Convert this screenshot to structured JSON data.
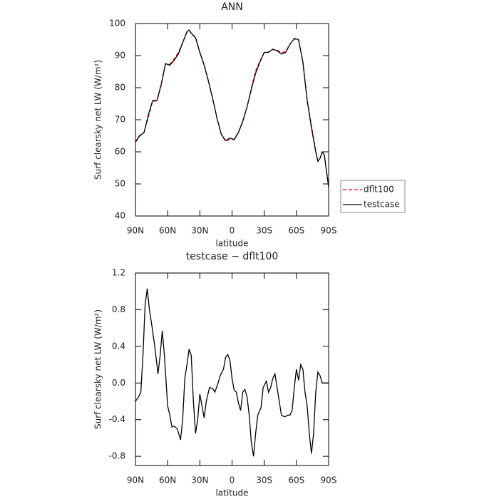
{
  "chart_data": [
    {
      "type": "line",
      "title": "ANN",
      "x_label": "latitude",
      "y_label": "Surf clearsky net LW (W/m²)",
      "x": [
        90,
        86,
        82,
        78,
        74,
        70,
        66,
        62,
        58,
        54,
        50,
        46,
        42,
        40,
        38,
        34,
        30,
        26,
        22,
        18,
        14,
        10,
        6,
        2,
        -2,
        -6,
        -10,
        -14,
        -18,
        -22,
        -26,
        -30,
        -34,
        -38,
        -42,
        -46,
        -50,
        -54,
        -58,
        -62,
        -66,
        -70,
        -74,
        -78,
        -80,
        -82,
        -84,
        -86,
        -88,
        -90
      ],
      "series": [
        {
          "name": "dflt100",
          "color": "#e00000",
          "dash": true,
          "values": [
            63.2,
            65.2,
            66.1,
            70.8,
            75.8,
            75.8,
            80.7,
            87.4,
            87.3,
            88.9,
            91.0,
            94.1,
            97.3,
            97.9,
            96.8,
            95.8,
            91.1,
            87.2,
            82.2,
            76.6,
            70.4,
            65.4,
            63.3,
            64.0,
            63.9,
            66.2,
            69.6,
            74.0,
            79.9,
            85.2,
            88.3,
            91.0,
            91.1,
            91.9,
            91.7,
            90.9,
            91.3,
            93.6,
            95.2,
            94.8,
            88.1,
            76.3,
            68.2,
            60.3,
            57.2,
            58.0,
            59.9,
            59.0,
            54.0,
            49.0
          ]
        },
        {
          "name": "testcase",
          "color": "#000000",
          "dash": false,
          "values": [
            63,
            65,
            66,
            71.5,
            76,
            76,
            81,
            87.5,
            87,
            88.5,
            90.5,
            94,
            97.5,
            98,
            97,
            95.5,
            91,
            87,
            82,
            76.5,
            70.5,
            65.5,
            63.5,
            64.3,
            63.8,
            66,
            69.5,
            74,
            79.5,
            84.5,
            88,
            91,
            91,
            92,
            91.5,
            90.5,
            91,
            93.5,
            95.3,
            95,
            88,
            76,
            67.5,
            60,
            57,
            58,
            60,
            59,
            54,
            49
          ]
        }
      ],
      "xlim": [
        90,
        -90
      ],
      "xticks": [
        {
          "value": 90,
          "label": "90N"
        },
        {
          "value": 60,
          "label": "60N"
        },
        {
          "value": 30,
          "label": "30N"
        },
        0,
        {
          "value": -30,
          "label": "30S"
        },
        {
          "value": -60,
          "label": "60S"
        },
        {
          "value": -90,
          "label": "90S"
        }
      ],
      "ylim": [
        40,
        100
      ],
      "yticks": [
        40,
        50,
        60,
        70,
        80,
        90,
        100
      ],
      "legend": "right"
    },
    {
      "type": "line",
      "title": "testcase − dflt100",
      "x_label": "latitude",
      "y_label": "Surf clearsky net LW (W/m²)",
      "x": [
        90,
        87,
        85,
        83,
        81,
        79,
        77,
        75,
        72,
        69,
        67,
        65,
        63,
        60,
        58,
        56,
        54,
        51,
        48,
        46,
        44,
        42,
        40,
        38,
        36,
        34,
        32,
        30,
        28,
        26,
        24,
        21,
        18,
        16,
        13,
        11,
        8,
        6,
        4,
        2,
        0,
        -2,
        -4,
        -6,
        -8,
        -10,
        -12,
        -14,
        -16,
        -18,
        -20,
        -22,
        -24,
        -27,
        -29,
        -32,
        -34,
        -36,
        -38,
        -40,
        -42,
        -44,
        -46,
        -49,
        -52,
        -54,
        -56,
        -58,
        -60,
        -62,
        -64,
        -66,
        -68,
        -70,
        -72,
        -74,
        -76,
        -78,
        -80,
        -82,
        -84,
        -90
      ],
      "values": [
        -0.2,
        -0.15,
        -0.1,
        0.3,
        0.85,
        1.03,
        0.8,
        0.65,
        0.4,
        0.1,
        0.3,
        0.57,
        0.3,
        -0.25,
        -0.35,
        -0.48,
        -0.47,
        -0.5,
        -0.62,
        -0.4,
        0.05,
        0.2,
        0.37,
        0.3,
        -0.2,
        -0.55,
        -0.4,
        -0.12,
        -0.25,
        -0.38,
        -0.2,
        -0.05,
        -0.06,
        -0.1,
        0.0,
        0.08,
        0.15,
        0.28,
        0.31,
        0.25,
        0.05,
        -0.08,
        -0.1,
        -0.22,
        -0.3,
        -0.1,
        -0.07,
        -0.15,
        -0.35,
        -0.65,
        -0.8,
        -0.55,
        -0.35,
        -0.27,
        -0.05,
        0.02,
        -0.1,
        -0.05,
        0.05,
        0.1,
        -0.05,
        -0.2,
        -0.35,
        -0.37,
        -0.35,
        -0.35,
        -0.3,
        -0.05,
        0.15,
        0.03,
        0.2,
        0.15,
        -0.1,
        -0.25,
        -0.55,
        -0.77,
        -0.55,
        -0.1,
        0.12,
        0.08,
        0.0,
        0.0
      ],
      "color": "#000000",
      "xlim": [
        90,
        -90
      ],
      "xticks": [
        {
          "value": 90,
          "label": "90N"
        },
        {
          "value": 60,
          "label": "60N"
        },
        {
          "value": 30,
          "label": "30N"
        },
        0,
        {
          "value": -30,
          "label": "30S"
        },
        {
          "value": -60,
          "label": "60S"
        },
        {
          "value": -90,
          "label": "90S"
        }
      ],
      "ylim": [
        -0.9,
        1.2
      ],
      "yticks": [
        -0.8,
        -0.4,
        {
          "value": 0,
          "label": "0.0"
        },
        0.4,
        0.8,
        1.2
      ]
    }
  ]
}
